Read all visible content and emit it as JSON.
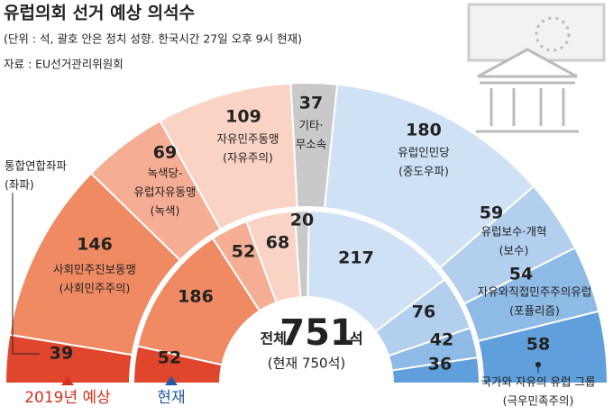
{
  "chart_data": {
    "type": "parliament",
    "title": "유럽의회 선거 예상 의석수",
    "subtitle": "(단위 : 석, 괄호 안은 정치 성향. 한국시간 27일 오후 9시 현재)",
    "source": "자료 : EU선거관리위원회",
    "categories": [
      [
        "통합연합좌파",
        "(좌파)"
      ],
      [
        "사회민주진보동맹",
        "(사회민주주의)"
      ],
      [
        "녹색당-",
        "유럽자유동맹",
        "(녹색)"
      ],
      [
        "자유민주동맹",
        "(자유주의)"
      ],
      [
        "기타·",
        "무소속"
      ],
      [
        "유럽인민당",
        "(중도우파)"
      ],
      [
        "유럽보수·개혁",
        "(보수)"
      ],
      [
        "자유와직접민주주의유럽",
        "(포퓰리즘)"
      ],
      [
        "국가와 자유의 유럽 그룹",
        "(극우민족주의)"
      ]
    ],
    "colors": [
      "#e0462c",
      "#ef8a62",
      "#f5ae93",
      "#fad3c4",
      "#c9c9c9",
      "#cfe1f5",
      "#b2cfee",
      "#8ebae6",
      "#5f9fdb"
    ],
    "series": [
      {
        "name": "2019년 예상",
        "color": "#d6301f",
        "values": [
          39,
          146,
          69,
          109,
          37,
          180,
          59,
          54,
          58
        ]
      },
      {
        "name": "현재",
        "color": "#1f5aa6",
        "values": [
          52,
          186,
          52,
          68,
          20,
          217,
          76,
          42,
          36
        ]
      }
    ],
    "total_prefix": "전체",
    "total_value": 751,
    "total_unit": "석",
    "current_note": "(현재 750석)"
  }
}
